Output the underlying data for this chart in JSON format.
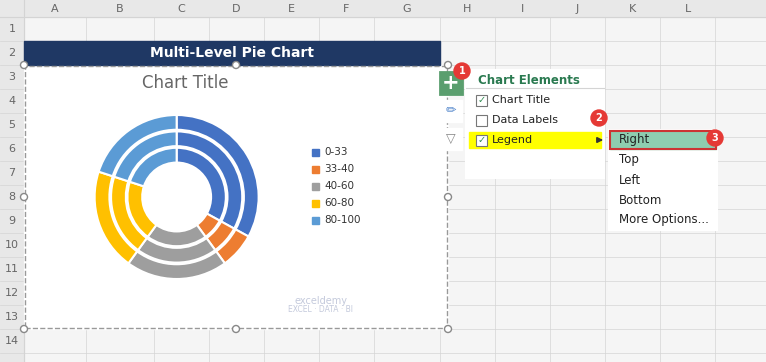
{
  "title_bar_text": "Multi-Level Pie Chart",
  "title_bar_bg": "#1f3864",
  "title_bar_text_color": "#ffffff",
  "chart_title": "Chart Title",
  "excel_bg": "#f5f5f5",
  "grid_color": "#d4d4d4",
  "header_bg": "#e8e8e8",
  "header_text": "#666666",
  "col_labels": [
    "A",
    "B",
    "C",
    "D",
    "E",
    "F",
    "G",
    "H",
    "I",
    "J",
    "K",
    "L"
  ],
  "row_labels": [
    "1",
    "2",
    "3",
    "4",
    "5",
    "6",
    "7",
    "8",
    "9",
    "10",
    "11",
    "12",
    "13",
    "14"
  ],
  "legend_labels": [
    "0-33",
    "33-40",
    "40-60",
    "60-80",
    "80-100"
  ],
  "legend_colors": [
    "#4472c4",
    "#ed7d31",
    "#9e9e9e",
    "#ffc000",
    "#5b9bd5"
  ],
  "ring_values": [
    33,
    7,
    20,
    20,
    20
  ],
  "ring_colors": [
    "#4472c4",
    "#ed7d31",
    "#9e9e9e",
    "#ffc000",
    "#5b9bd5"
  ],
  "watermark_line1": "exceldemy",
  "watermark_line2": "EXCEL · DATA · BI",
  "chart_elements_title": "Chart Elements",
  "chart_el_items": [
    "Chart Title",
    "Data Labels",
    "Legend"
  ],
  "chart_el_checked": [
    true,
    false,
    true
  ],
  "submenu_items": [
    "Right",
    "Top",
    "Left",
    "Bottom",
    "More Options..."
  ],
  "submenu_highlighted": "Right",
  "badge_color": "#e53935",
  "plus_btn_bg": "#5a9e6e",
  "plus_btn_border": "#cc3333",
  "panel_border": "#4caf8c",
  "submenu_highlight_bg": "#8ecdb0",
  "submenu_highlight_border": "#cc3333"
}
